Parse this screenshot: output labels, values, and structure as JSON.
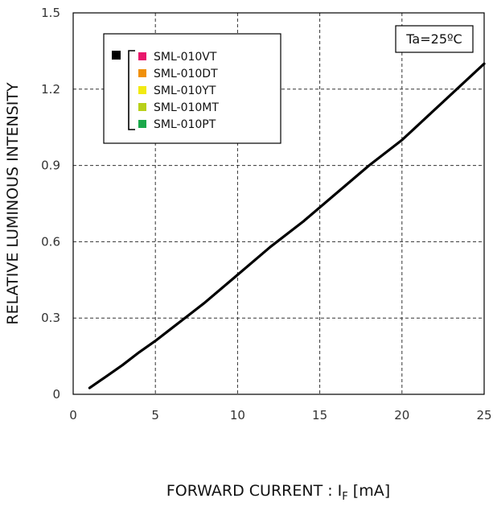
{
  "chart_data": {
    "type": "line",
    "title": "",
    "xlabel": "FORWARD CURRENT : I",
    "xlabel_subscript": "F",
    "xlabel_unit": " [mA]",
    "ylabel": "RELATIVE LUMINOUS INTENSITY",
    "xlim": [
      0,
      25
    ],
    "ylim": [
      0,
      1.5
    ],
    "x_ticks": [
      {
        "value": 0,
        "label": "0"
      },
      {
        "value": 5,
        "label": "5"
      },
      {
        "value": 10,
        "label": "10"
      },
      {
        "value": 15,
        "label": "15"
      },
      {
        "value": 20,
        "label": "20"
      },
      {
        "value": 25,
        "label": "25"
      }
    ],
    "y_ticks": [
      {
        "value": 0,
        "label": "0"
      },
      {
        "value": 0.3,
        "label": "0.3"
      },
      {
        "value": 0.6,
        "label": "0.6"
      },
      {
        "value": 0.9,
        "label": "0.9"
      },
      {
        "value": 1.2,
        "label": "1.2"
      },
      {
        "value": 1.5,
        "label": "1.5"
      }
    ],
    "grid": true,
    "grid_style": "dashed",
    "annotation": "Ta=25ºC",
    "legend_position": "top-left",
    "legend": {
      "series_swatch_color": "#000000",
      "entries": [
        {
          "label": "SML-010VT",
          "color": "#e8176b"
        },
        {
          "label": "SML-010DT",
          "color": "#f0900a"
        },
        {
          "label": "SML-010YT",
          "color": "#f2ea12"
        },
        {
          "label": "SML-010MT",
          "color": "#b8d01a"
        },
        {
          "label": "SML-010PT",
          "color": "#1aa84a"
        }
      ]
    },
    "series": [
      {
        "color": "#000000",
        "x": [
          1,
          2,
          3,
          4,
          5,
          6,
          7,
          8,
          10,
          12,
          14,
          16,
          18,
          20,
          22,
          25
        ],
        "values": [
          0.025,
          0.07,
          0.115,
          0.165,
          0.21,
          0.26,
          0.31,
          0.36,
          0.47,
          0.58,
          0.68,
          0.79,
          0.9,
          1.0,
          1.12,
          1.3
        ]
      }
    ]
  }
}
